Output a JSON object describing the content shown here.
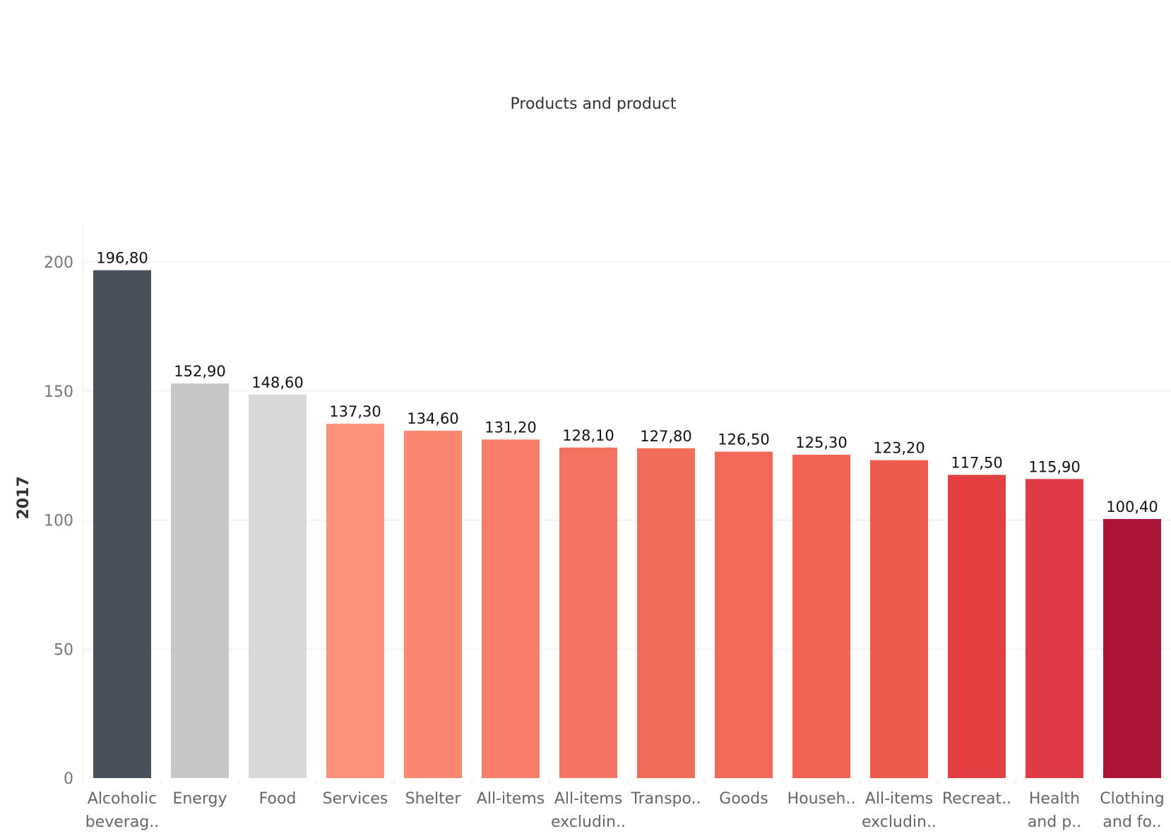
{
  "chart_data": {
    "type": "bar",
    "title": "Products and product",
    "ylabel": "2017",
    "xlabel": "",
    "ylim": [
      0,
      210
    ],
    "yticks": [
      0,
      50,
      100,
      150,
      200
    ],
    "grid": true,
    "categories": [
      [
        "Alcoholic",
        "beverag.."
      ],
      [
        "Energy"
      ],
      [
        "Food"
      ],
      [
        "Services"
      ],
      [
        "Shelter"
      ],
      [
        "All-items"
      ],
      [
        "All-items",
        "excludin.."
      ],
      [
        "Transpo.."
      ],
      [
        "Goods"
      ],
      [
        "Househ.."
      ],
      [
        "All-items",
        "excludin.."
      ],
      [
        "Recreat.."
      ],
      [
        "Health",
        "and p.."
      ],
      [
        "Clothing",
        "and fo.."
      ]
    ],
    "values": [
      196.8,
      152.9,
      148.6,
      137.3,
      134.6,
      131.2,
      128.1,
      127.8,
      126.5,
      125.3,
      123.2,
      117.5,
      115.9,
      100.4
    ],
    "value_labels": [
      "196,80",
      "152,90",
      "148,60",
      "137,30",
      "134,60",
      "131,20",
      "128,10",
      "127,80",
      "126,50",
      "125,30",
      "123,20",
      "117,50",
      "115,90",
      "100,40"
    ],
    "colors": [
      "#4a505c",
      "#c6c7c6",
      "#d8d8d8",
      "#fc9078",
      "#f98771",
      "#f67d69",
      "#f37363",
      "#f26c5b",
      "#f26959",
      "#f06253",
      "#ee5a4e",
      "#e44043",
      "#e03b45",
      "#ad1537"
    ]
  }
}
